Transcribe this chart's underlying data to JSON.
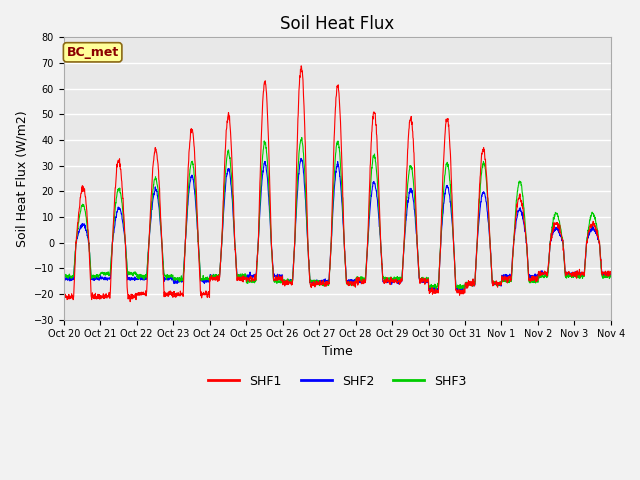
{
  "title": "Soil Heat Flux",
  "ylabel": "Soil Heat Flux (W/m2)",
  "xlabel": "Time",
  "ylim": [
    -30,
    80
  ],
  "yticks": [
    -30,
    -20,
    -10,
    0,
    10,
    20,
    30,
    40,
    50,
    60,
    70,
    80
  ],
  "xtick_labels": [
    "Oct 20",
    "Oct 21",
    "Oct 22",
    "Oct 23",
    "Oct 24",
    "Oct 25",
    "Oct 26",
    "Oct 27",
    "Oct 28",
    "Oct 29",
    "Oct 30",
    "Oct 31",
    "Nov 1",
    "Nov 2",
    "Nov 3",
    "Nov 4"
  ],
  "colors": {
    "SHF1": "#FF0000",
    "SHF2": "#0000FF",
    "SHF3": "#00CC00"
  },
  "plot_bg": "#E8E8E8",
  "fig_bg": "#F2F2F2",
  "grid_color": "#FFFFFF",
  "title_fontsize": 12,
  "axis_fontsize": 9,
  "tick_fontsize": 7,
  "n_points": 2160,
  "days": 15,
  "annotation": "BC_met",
  "day_amplitudes_shf1": [
    5,
    37,
    27,
    45,
    44,
    55,
    70,
    67,
    55,
    47,
    50,
    47,
    26,
    10,
    5
  ],
  "day_amplitudes_shf2": [
    3,
    11,
    16,
    25,
    27,
    30,
    32,
    33,
    28,
    19,
    22,
    22,
    18,
    8,
    3
  ],
  "day_amplitudes_shf3": [
    8,
    21,
    21,
    29,
    34,
    37,
    41,
    40,
    39,
    29,
    31,
    31,
    31,
    17,
    6
  ],
  "night_shf1": [
    -21,
    -21,
    -20,
    -20,
    -14,
    -14,
    -16,
    -16,
    -15,
    -15,
    -19,
    -16,
    -14,
    -12,
    -10
  ],
  "night_shf2": [
    -14,
    -14,
    -14,
    -15,
    -13,
    -13,
    -15,
    -15,
    -15,
    -15,
    -18,
    -16,
    -13,
    -12,
    -10
  ],
  "night_shf3": [
    -13,
    -12,
    -13,
    -14,
    -13,
    -15,
    -15,
    -16,
    -14,
    -14,
    -17,
    -16,
    -15,
    -13,
    -10
  ]
}
